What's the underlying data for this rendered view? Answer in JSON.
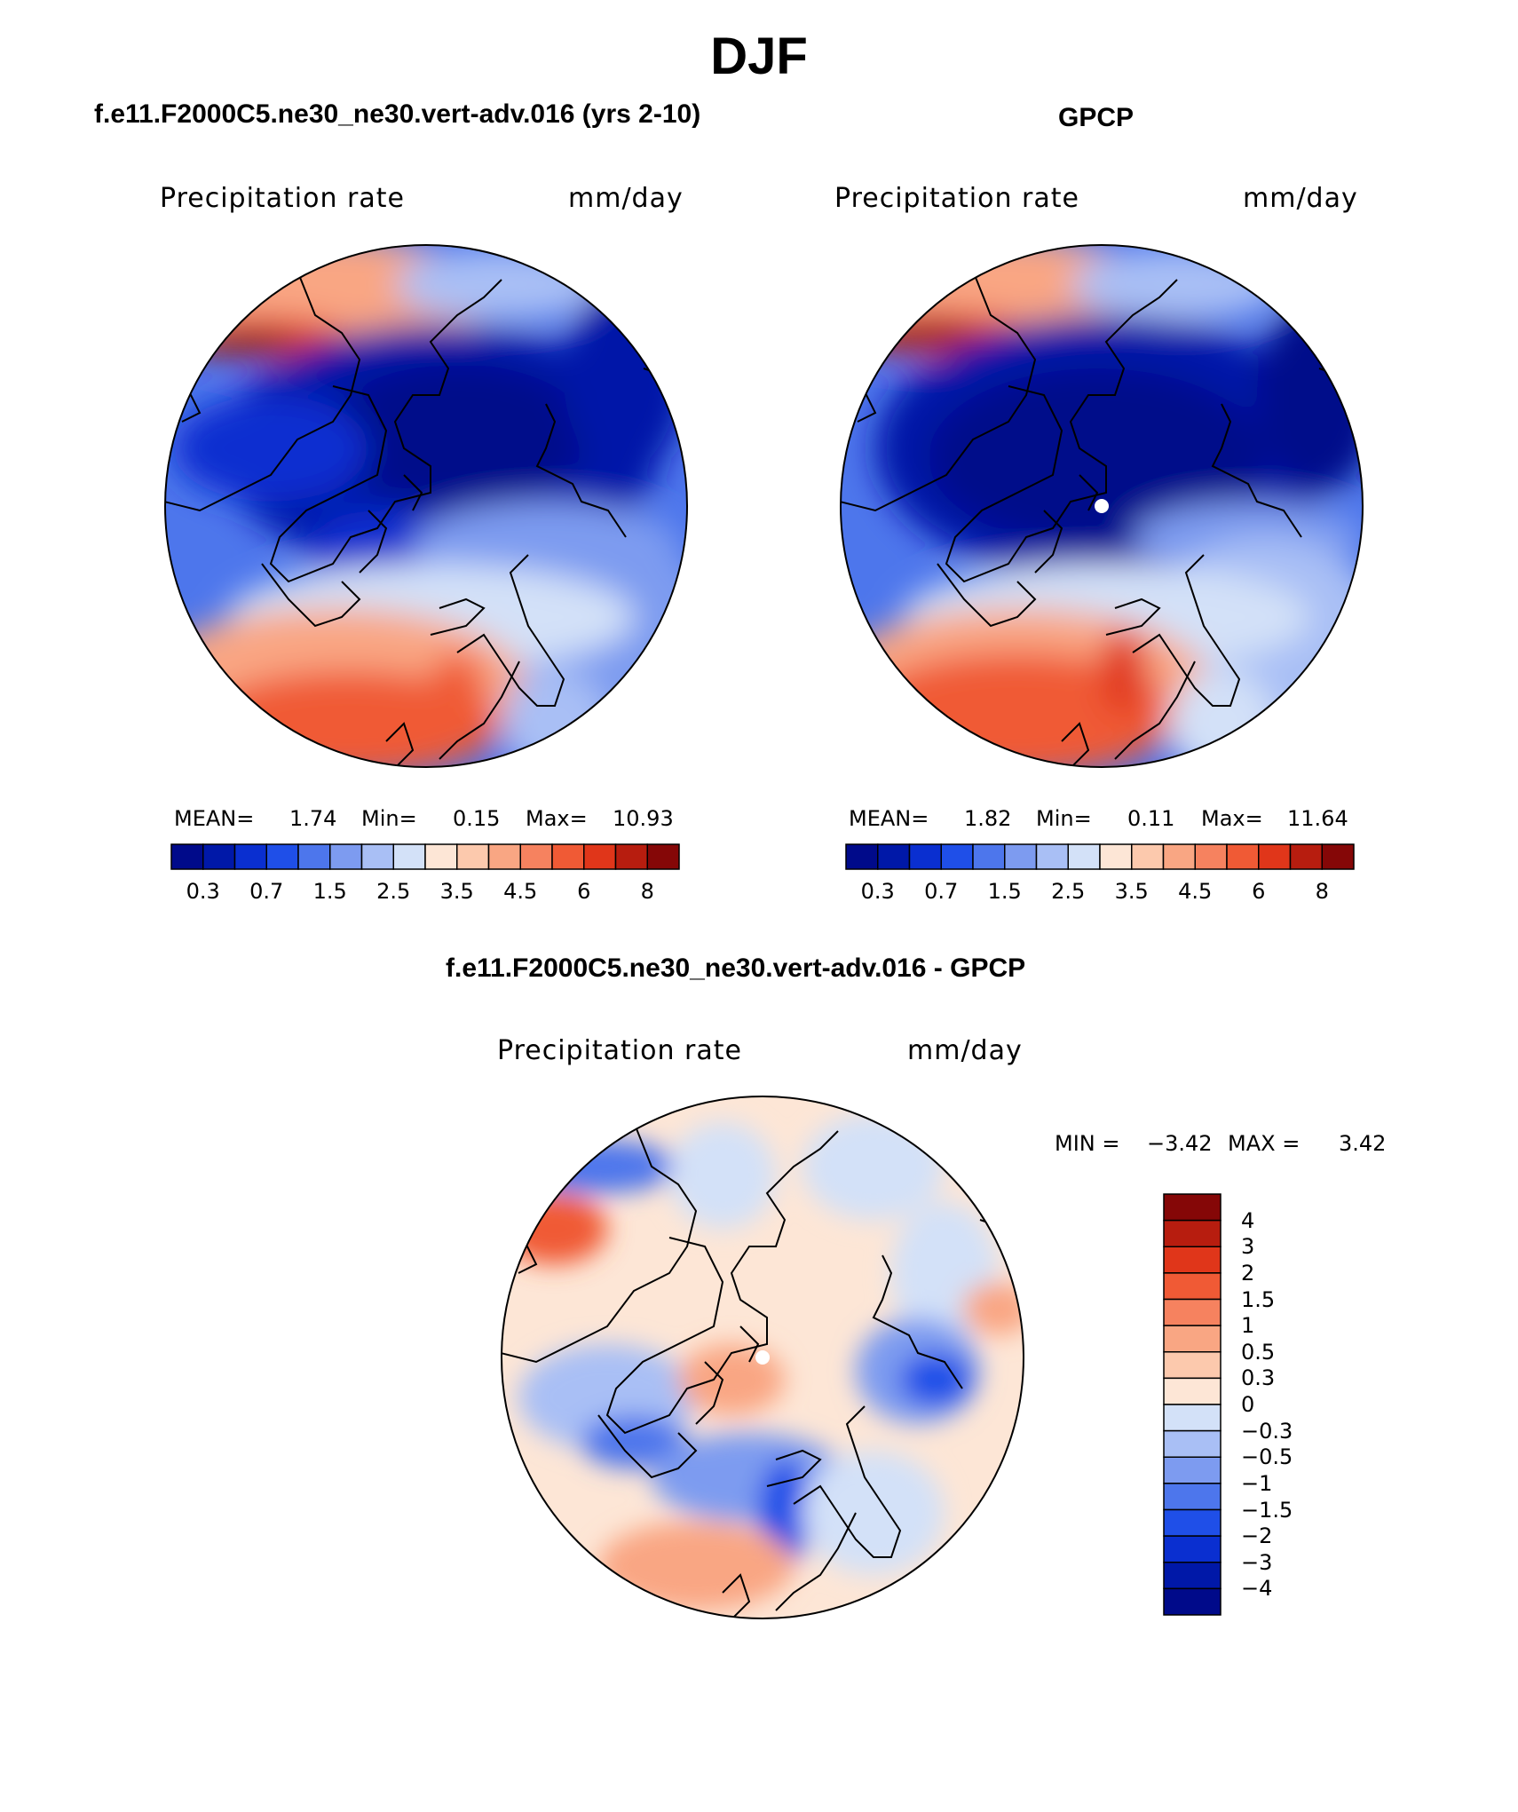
{
  "figure": {
    "title": "DJF",
    "diff_title": "f.e11.F2000C5.ne30_ne30.vert-adv.016 - GPCP"
  },
  "panels": [
    {
      "title": "f.e11.F2000C5.ne30_ne30.vert-adv.016 (yrs 2-10)",
      "variable": "Precipitation rate",
      "units": "mm/day",
      "mean_label": "MEAN=",
      "mean": "1.74",
      "min_label": "Min=",
      "min": "0.15",
      "max_label": "Max=",
      "max": "10.93"
    },
    {
      "title": "GPCP",
      "variable": "Precipitation rate",
      "units": "mm/day",
      "mean_label": "MEAN=",
      "mean": "1.82",
      "min_label": "Min=",
      "min": "0.11",
      "max_label": "Max=",
      "max": "11.64"
    }
  ],
  "diff_panel": {
    "variable": "Precipitation rate",
    "units": "mm/day",
    "min_label": "MIN =",
    "min": "−3.42",
    "max_label": "MAX =",
    "max": "3.42"
  },
  "colorbar_main": {
    "colors": [
      "#000a8a",
      "#0018a8",
      "#0a2fd0",
      "#1f4fe8",
      "#4d76ec",
      "#7d9bf0",
      "#a9bff5",
      "#d3e1f8",
      "#fde6d6",
      "#fcc9ad",
      "#f9a683",
      "#f6825f",
      "#f05a35",
      "#e0361a",
      "#b71d0f",
      "#850707"
    ],
    "ticks": [
      "0.3",
      "0.7",
      "1.5",
      "2.5",
      "3.5",
      "4.5",
      "6",
      "8"
    ]
  },
  "colorbar_diff": {
    "colors_top_to_bottom": [
      "#850707",
      "#b71d0f",
      "#e0361a",
      "#f05a35",
      "#f6825f",
      "#f9a683",
      "#fcc9ad",
      "#fde6d6",
      "#d3e1f8",
      "#a9bff5",
      "#7d9bf0",
      "#4d76ec",
      "#1f4fe8",
      "#0a2fd0",
      "#0018a8",
      "#000a8a"
    ],
    "ticks": [
      "4",
      "3",
      "2",
      "1.5",
      "1",
      "0.5",
      "0.3",
      "0",
      "−0.3",
      "−0.5",
      "−1",
      "−1.5",
      "−2",
      "−3",
      "−4"
    ]
  },
  "map_colors": {
    "deep_blue": "#000a8a",
    "blue": "#0a2fd0",
    "mid_blue": "#4d76ec",
    "light_blue": "#a9bff5",
    "pale_blue": "#d3e1f8",
    "peach": "#fde6d6",
    "salmon": "#f9a683",
    "orange": "#f05a35",
    "dark_red": "#850707"
  }
}
